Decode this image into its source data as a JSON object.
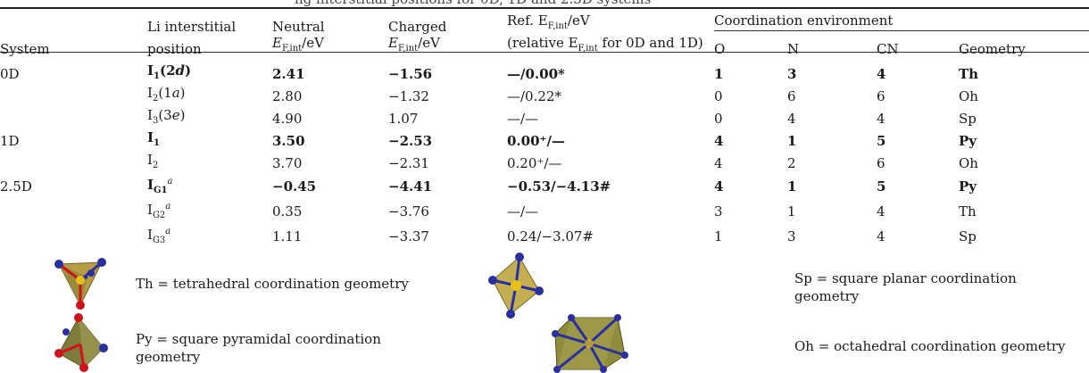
{
  "caption_fragment": "ng interstitial positions for 0D, 1D and 2.5D systems",
  "headers": {
    "system": "System",
    "position_l1": "Li interstitial",
    "position_l2": "position",
    "neutral_l1": "Neutral",
    "neutral_l2": "E",
    "neutral_sub": "F,int",
    "neutral_unit": "/eV",
    "charged_l1": "Charged",
    "charged_l2": "E",
    "charged_sub": "F,int",
    "charged_unit": "/eV",
    "ref_l1_a": "Ref. E",
    "ref_l1_sub": "F,int",
    "ref_l1_unit": "/eV",
    "ref_l2_a": "(relative E",
    "ref_l2_sub": "F,int",
    "ref_l2_b": " for 0D and 1D)",
    "coord_group": "Coordination environment",
    "o": "O",
    "n": "N",
    "cn": "CN",
    "geometry": "Geometry"
  },
  "rows": [
    {
      "system": "0D",
      "pos": "I",
      "pos_sub": "1",
      "pos_paren": "(2",
      "pos_it": "d",
      "pos_close": ")",
      "pos_sup": "",
      "neutral": "2.41",
      "charged": "−1.56",
      "ref": "—/0.00*",
      "o": "1",
      "n": "3",
      "cn": "4",
      "geom": "Th",
      "bold": true
    },
    {
      "system": "",
      "pos": "I",
      "pos_sub": "2",
      "pos_paren": "(1",
      "pos_it": "a",
      "pos_close": ")",
      "pos_sup": "",
      "neutral": "2.80",
      "charged": "−1.32",
      "ref": "—/0.22*",
      "o": "0",
      "n": "6",
      "cn": "6",
      "geom": "Oh",
      "bold": false
    },
    {
      "system": "",
      "pos": "I",
      "pos_sub": "3",
      "pos_paren": "(3",
      "pos_it": "e",
      "pos_close": ")",
      "pos_sup": "",
      "neutral": "4.90",
      "charged": "1.07",
      "ref": "—/—",
      "o": "0",
      "n": "4",
      "cn": "4",
      "geom": "Sp",
      "bold": false
    },
    {
      "system": "1D",
      "pos": "I",
      "pos_sub": "1",
      "pos_paren": "",
      "pos_it": "",
      "pos_close": "",
      "pos_sup": "",
      "neutral": "3.50",
      "charged": "−2.53",
      "ref": "0.00⁺/—",
      "o": "4",
      "n": "1",
      "cn": "5",
      "geom": "Py",
      "bold": true
    },
    {
      "system": "",
      "pos": "I",
      "pos_sub": "2",
      "pos_paren": "",
      "pos_it": "",
      "pos_close": "",
      "pos_sup": "",
      "neutral": "3.70",
      "charged": "−2.31",
      "ref": "0.20⁺/—",
      "o": "4",
      "n": "2",
      "cn": "6",
      "geom": "Oh",
      "bold": false
    },
    {
      "system": "2.5D",
      "pos": "I",
      "pos_sub": "G1",
      "pos_paren": "",
      "pos_it": "",
      "pos_close": "",
      "pos_sup": "a",
      "neutral": "−0.45",
      "charged": "−4.41",
      "ref": "−0.53/−4.13#",
      "o": "4",
      "n": "1",
      "cn": "5",
      "geom": "Py",
      "bold": true
    },
    {
      "system": "",
      "pos": "I",
      "pos_sub": "G2",
      "pos_paren": "",
      "pos_it": "",
      "pos_close": "",
      "pos_sup": "a",
      "neutral": "0.35",
      "charged": "−3.76",
      "ref": "—/—",
      "o": "3",
      "n": "1",
      "cn": "4",
      "geom": "Th",
      "bold": false
    },
    {
      "system": "",
      "pos": "I",
      "pos_sub": "G3",
      "pos_paren": "",
      "pos_it": "",
      "pos_close": "",
      "pos_sup": "a",
      "neutral": "1.11",
      "charged": "−3.37",
      "ref": "0.24/−3.07#",
      "o": "1",
      "n": "3",
      "cn": "4",
      "geom": "Sp",
      "bold": false
    }
  ],
  "legend": {
    "th": "Th = tetrahedral coordination geometry",
    "sp_l1": "Sp = square planar coordination",
    "sp_l2": "geometry",
    "py_l1": "Py = square pyramidal coordination",
    "py_l2": "geometry",
    "oh": "Oh = octahedral coordination geometry"
  },
  "colors": {
    "oxygen": "#d0121b",
    "nitrogen": "#2a2fa0",
    "lithium": "#e8c21a",
    "polyhedron": "#9a8a3c"
  },
  "icons": [
    "tetrahedron-icon",
    "square-pyramid-icon",
    "square-planar-icon",
    "octahedron-icon"
  ]
}
